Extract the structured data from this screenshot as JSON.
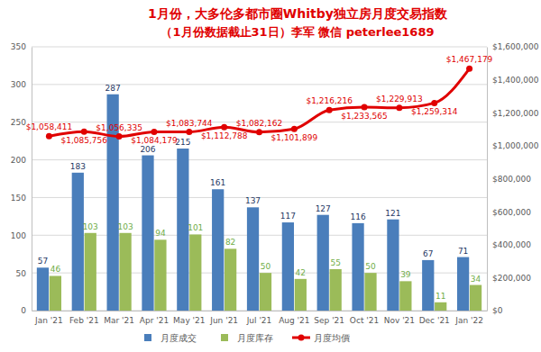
{
  "chart_data": {
    "type": "bar",
    "title": "1月份，大多伦多都市圈Whitby独立房月度交易指数",
    "subtitle": "（1月份数据截止31日）李军 微信 peterlee1689",
    "categories": [
      "Jan '21",
      "Feb '21",
      "Mar '21",
      "Apr '21",
      "May '21",
      "Jun '21",
      "Jul '21",
      "Aug '21",
      "Sep '21",
      "Oct '21",
      "Nov '21",
      "Dec '21",
      "Jan '22"
    ],
    "series": [
      {
        "name": "月度成交",
        "type": "bar",
        "color": "#4a7ebb",
        "values": [
          57,
          183,
          287,
          206,
          215,
          161,
          137,
          117,
          127,
          116,
          121,
          67,
          71
        ]
      },
      {
        "name": "月度库存",
        "type": "bar",
        "color": "#9bbb59",
        "values": [
          46,
          103,
          103,
          94,
          101,
          82,
          50,
          42,
          55,
          50,
          39,
          11,
          34
        ]
      },
      {
        "name": "月度均價",
        "type": "line",
        "axis": "y2",
        "color": "#e00000",
        "marker": "circle",
        "values": [
          1058411,
          1085756,
          1056335,
          1084179,
          1083744,
          1112788,
          1082162,
          1101899,
          1216216,
          1233565,
          1229913,
          1259314,
          1467179
        ],
        "value_labels": [
          "$1,058,411",
          "$1,085,756",
          "$1,056,335",
          "$1,084,179",
          "$1,083,744",
          "$1,112,788",
          "$1,082,162",
          "$1,101,899",
          "$1,216,216",
          "$1,233,565",
          "$1,229,913",
          "$1,259,314",
          "$1,467,179"
        ]
      }
    ],
    "ylim": [
      0,
      350
    ],
    "yticks": [
      0,
      50,
      100,
      150,
      200,
      250,
      300,
      350
    ],
    "y2lim": [
      0,
      1600000
    ],
    "y2ticks": [
      {
        "value": 0,
        "label": "$0"
      },
      {
        "value": 200000,
        "label": "$200,000"
      },
      {
        "value": 400000,
        "label": "$400,000"
      },
      {
        "value": 600000,
        "label": "$600,000"
      },
      {
        "value": 800000,
        "label": "$800,000"
      },
      {
        "value": 1000000,
        "label": "$1,000,000"
      },
      {
        "value": 1200000,
        "label": "$1,200,000"
      },
      {
        "value": 1400000,
        "label": "$1,400,000"
      },
      {
        "value": 1600000,
        "label": "$1,600,000"
      }
    ],
    "grid": true,
    "legend": "bottom",
    "data_labels": true
  }
}
